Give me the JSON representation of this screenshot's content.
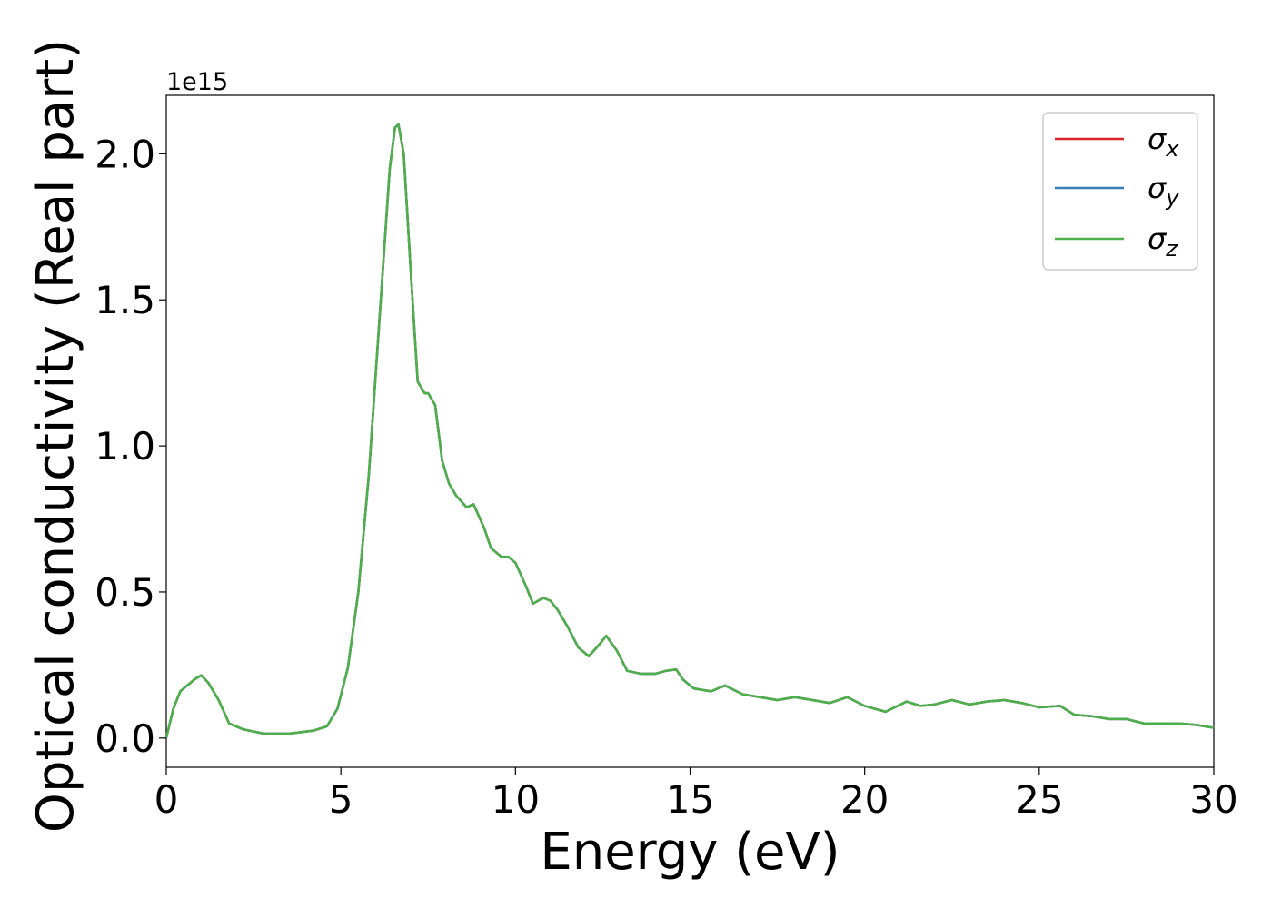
{
  "chart_data": {
    "type": "line",
    "title": "",
    "xlabel": "Energy (eV)",
    "ylabel": "Optical conductivity (Real part)",
    "y_offset_text": "1e15",
    "xlim": [
      0,
      30
    ],
    "ylim": [
      -0.1,
      2.2
    ],
    "y_scale_factor": 1000000000000000.0,
    "x_ticks": [
      0,
      5,
      10,
      15,
      20,
      25,
      30
    ],
    "y_ticks": [
      0.0,
      0.5,
      1.0,
      1.5,
      2.0
    ],
    "x_tick_labels": [
      "0",
      "5",
      "10",
      "15",
      "20",
      "25",
      "30"
    ],
    "y_tick_labels": [
      "0.0",
      "0.5",
      "1.0",
      "1.5",
      "2.0"
    ],
    "grid": false,
    "legend_position": "top-right",
    "series": [
      {
        "name": "σx",
        "symbol": "σ",
        "subscript": "x",
        "color": "#d62728"
      },
      {
        "name": "σy",
        "symbol": "σ",
        "subscript": "y",
        "color": "#377eb8"
      },
      {
        "name": "σz",
        "symbol": "σ",
        "subscript": "z",
        "color": "#4daf4a"
      }
    ],
    "x": [
      0,
      0.2,
      0.4,
      0.6,
      0.8,
      1.0,
      1.2,
      1.5,
      1.8,
      2.2,
      2.8,
      3.5,
      4.2,
      4.6,
      4.9,
      5.2,
      5.5,
      5.8,
      6.0,
      6.2,
      6.4,
      6.55,
      6.65,
      6.8,
      7.0,
      7.2,
      7.4,
      7.5,
      7.7,
      7.9,
      8.1,
      8.3,
      8.6,
      8.8,
      9.1,
      9.3,
      9.6,
      9.8,
      10.0,
      10.3,
      10.5,
      10.8,
      11.0,
      11.2,
      11.5,
      11.8,
      12.1,
      12.4,
      12.6,
      12.9,
      13.2,
      13.6,
      14.0,
      14.3,
      14.6,
      14.8,
      15.1,
      15.6,
      16.0,
      16.5,
      17.0,
      17.5,
      18.0,
      18.5,
      19.0,
      19.5,
      20.0,
      20.6,
      21.2,
      21.6,
      22.0,
      22.5,
      23.0,
      23.5,
      24.0,
      24.5,
      25.0,
      25.6,
      26.0,
      26.5,
      27.0,
      27.5,
      28.0,
      28.5,
      29.0,
      29.5,
      30.0
    ],
    "y": [
      0.0,
      0.1,
      0.16,
      0.18,
      0.2,
      0.215,
      0.19,
      0.13,
      0.05,
      0.03,
      0.015,
      0.015,
      0.025,
      0.04,
      0.1,
      0.24,
      0.5,
      0.9,
      1.25,
      1.6,
      1.95,
      2.09,
      2.1,
      2.0,
      1.6,
      1.22,
      1.18,
      1.18,
      1.14,
      0.95,
      0.87,
      0.83,
      0.79,
      0.8,
      0.72,
      0.65,
      0.62,
      0.62,
      0.6,
      0.52,
      0.46,
      0.48,
      0.47,
      0.44,
      0.38,
      0.31,
      0.28,
      0.32,
      0.35,
      0.3,
      0.23,
      0.22,
      0.22,
      0.23,
      0.235,
      0.2,
      0.17,
      0.16,
      0.18,
      0.15,
      0.14,
      0.13,
      0.14,
      0.13,
      0.12,
      0.14,
      0.11,
      0.09,
      0.125,
      0.11,
      0.115,
      0.13,
      0.115,
      0.125,
      0.13,
      0.12,
      0.105,
      0.11,
      0.08,
      0.075,
      0.065,
      0.065,
      0.05,
      0.05,
      0.05,
      0.045,
      0.035
    ]
  }
}
